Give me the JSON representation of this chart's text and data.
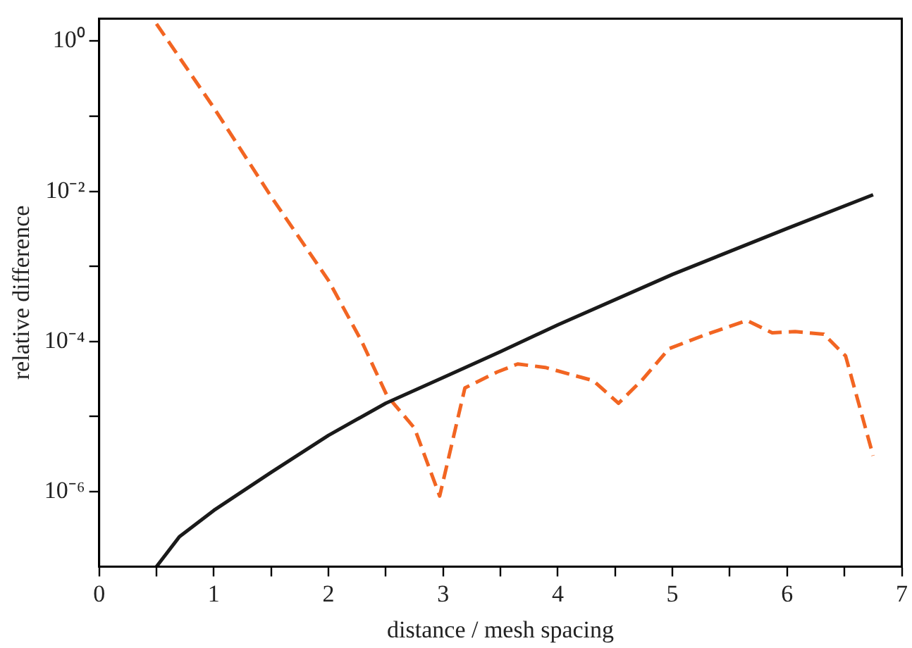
{
  "chart_data": {
    "type": "line",
    "xlabel": "distance / mesh spacing",
    "ylabel": "relative difference",
    "log": "y",
    "grid": false,
    "legend": false,
    "marker": "none",
    "xlim": [
      0,
      7
    ],
    "xticks": [
      0,
      {
        "value": 0.5,
        "label": null
      },
      1,
      {
        "value": 1.5,
        "label": null
      },
      2,
      {
        "value": 2.5,
        "label": null
      },
      3,
      {
        "value": 3.5,
        "label": null
      },
      4,
      {
        "value": 4.5,
        "label": null
      },
      5,
      {
        "value": 5.5,
        "label": null
      },
      6,
      {
        "value": 6.5,
        "label": null
      },
      7
    ],
    "ylim": [
      1e-07,
      2
    ],
    "yticks": [
      {
        "value": 1e-06,
        "label": "10⁻⁶"
      },
      {
        "value": 1e-05,
        "label": null
      },
      {
        "value": 0.0001,
        "label": "10⁻⁴"
      },
      {
        "value": 0.001,
        "label": null
      },
      {
        "value": 0.01,
        "label": "10⁻²"
      },
      {
        "value": 0.1,
        "label": null
      },
      {
        "value": 1,
        "label": "10⁰"
      }
    ],
    "series": [
      {
        "color": "#1a1a1a",
        "line_style": "solid",
        "x": [
          0.5,
          0.7,
          1.0,
          1.5,
          2.0,
          2.5,
          3.0,
          3.5,
          4.0,
          5.0,
          6.0,
          6.75
        ],
        "values": [
          1e-07,
          2.5e-07,
          5.6e-07,
          1.8e-06,
          5.6e-06,
          1.5e-05,
          3.3e-05,
          7.3e-05,
          0.000166,
          0.00078,
          0.0032,
          0.009
        ]
      },
      {
        "color": "#f26522",
        "line_style": "dashed",
        "x": [
          0.5,
          1.0,
          1.5,
          2.0,
          2.29,
          2.51,
          2.75,
          2.97,
          3.19,
          3.47,
          3.65,
          3.89,
          4.31,
          4.53,
          4.73,
          4.97,
          5.27,
          5.65,
          5.87,
          6.07,
          6.32,
          6.51,
          6.75
        ],
        "values": [
          1.7,
          0.13,
          0.0085,
          0.00065,
          0.0001,
          1.9e-05,
          7e-06,
          8.7e-07,
          2.4e-05,
          3.9e-05,
          5e-05,
          4.5e-05,
          3e-05,
          1.5e-05,
          3e-05,
          8e-05,
          0.00012,
          0.00019,
          0.00013,
          0.000135,
          0.000125,
          6.4e-05,
          3e-06
        ]
      }
    ]
  }
}
